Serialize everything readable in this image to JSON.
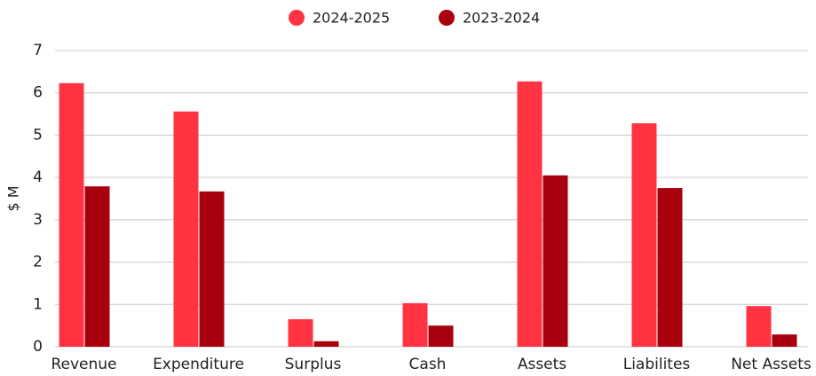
{
  "chart_data": {
    "type": "bar",
    "y_label": "$ M",
    "categories": [
      "Revenue",
      "Expenditure",
      "Surplus",
      "Cash",
      "Assets",
      "Liabilites",
      "Net Assets"
    ],
    "series": [
      {
        "name": "2024-2025",
        "color": "#ff3341",
        "values": [
          6.23,
          5.56,
          0.65,
          1.03,
          6.27,
          5.28,
          0.96
        ]
      },
      {
        "name": "2023-2024",
        "color": "#a8000d",
        "values": [
          3.79,
          3.67,
          0.13,
          0.5,
          4.05,
          3.75,
          0.29
        ]
      }
    ],
    "ylim": [
      0,
      7
    ],
    "yticks": [
      0,
      1,
      2,
      3,
      4,
      5,
      6,
      7
    ],
    "grid": true,
    "legend": "top"
  }
}
